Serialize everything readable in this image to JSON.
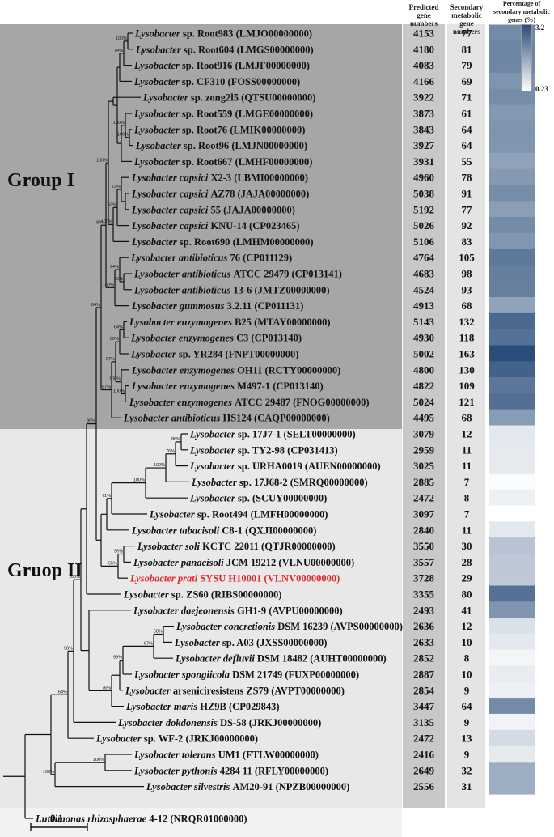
{
  "columns": {
    "predicted": "Predicted gene numbers",
    "secondary": "Secondary metabolic gene numbers",
    "percentage": "Percentage of secondary metabolic genes (%)"
  },
  "legend": {
    "max": "3.2",
    "min": "0.23"
  },
  "groups": {
    "group1": "Group I",
    "group2": "Gruop II"
  },
  "scale": "0.1",
  "colors": {
    "group1_bg": "#a6a6a6",
    "group2_bg": "#e8e8e8",
    "outgroup_bg": "#f2f2f2",
    "highlight": "#e8262c",
    "heat_high": "#2a4d7a",
    "heat_low": "#ffffff"
  },
  "taxa": [
    {
      "genus": "Lysobacter",
      "species": "sp.",
      "italic_species": false,
      "strain": "Root983",
      "acc": "(LMJO00000000)",
      "predicted": "4153",
      "secondary": "77",
      "pct": 1.85
    },
    {
      "genus": "Lysobacter",
      "species": "sp.",
      "italic_species": false,
      "strain": "Root604",
      "acc": "(LMGS00000000)",
      "predicted": "4180",
      "secondary": "81",
      "pct": 1.94
    },
    {
      "genus": "Lysobacter",
      "species": "sp.",
      "italic_species": false,
      "strain": "Root916",
      "acc": "(LMJF00000000)",
      "predicted": "4083",
      "secondary": "79",
      "pct": 1.93
    },
    {
      "genus": "Lysobacter",
      "species": "sp.",
      "italic_species": false,
      "strain": "CF310",
      "acc": "(FOSS00000000)",
      "predicted": "4166",
      "secondary": "69",
      "pct": 1.66
    },
    {
      "genus": "Lysobacter",
      "species": "sp.",
      "italic_species": false,
      "strain": "zong2l5",
      "acc": "(QTSU00000000)",
      "predicted": "3922",
      "secondary": "71",
      "pct": 1.81
    },
    {
      "genus": "Lysobacter",
      "species": "sp.",
      "italic_species": false,
      "strain": "Root559",
      "acc": "(LMGE00000000)",
      "predicted": "3873",
      "secondary": "61",
      "pct": 1.58
    },
    {
      "genus": "Lysobacter",
      "species": "sp.",
      "italic_species": false,
      "strain": "Root76",
      "acc": "(LMIK00000000)",
      "predicted": "3843",
      "secondary": "64",
      "pct": 1.67
    },
    {
      "genus": "Lysobacter",
      "species": "sp.",
      "italic_species": false,
      "strain": "Root96",
      "acc": "(LMJN00000000)",
      "predicted": "3927",
      "secondary": "64",
      "pct": 1.63
    },
    {
      "genus": "Lysobacter",
      "species": "sp.",
      "italic_species": false,
      "strain": "Root667",
      "acc": "(LMHF00000000)",
      "predicted": "3931",
      "secondary": "55",
      "pct": 1.4
    },
    {
      "genus": "Lysobacter",
      "species": "capsici",
      "italic_species": true,
      "strain": "X2-3",
      "acc": "(LBMI00000000)",
      "predicted": "4960",
      "secondary": "78",
      "pct": 1.57
    },
    {
      "genus": "Lysobacter",
      "species": "capsici",
      "italic_species": true,
      "strain": "AZ78",
      "acc": "(JAJA00000000)",
      "predicted": "5038",
      "secondary": "91",
      "pct": 1.81
    },
    {
      "genus": "Lysobacter",
      "species": "capsici",
      "italic_species": true,
      "strain": "55",
      "acc": "(JAJA00000000)",
      "predicted": "5192",
      "secondary": "77",
      "pct": 1.48
    },
    {
      "genus": "Lysobacter",
      "species": "capsici",
      "italic_species": true,
      "strain": "KNU-14",
      "acc": "(CP023465)",
      "predicted": "5026",
      "secondary": "92",
      "pct": 1.83
    },
    {
      "genus": "Lysobacter",
      "species": "sp.",
      "italic_species": false,
      "strain": "Root690",
      "acc": "(LMHM00000000)",
      "predicted": "5106",
      "secondary": "83",
      "pct": 1.63
    },
    {
      "genus": "Lysobacter",
      "species": "antibioticus",
      "italic_species": true,
      "strain": "76",
      "acc": "(CP011129)",
      "predicted": "4764",
      "secondary": "105",
      "pct": 2.2
    },
    {
      "genus": "Lysobacter",
      "species": "antibioticus",
      "italic_species": true,
      "strain": "ATCC 29479",
      "acc": "(CP013141)",
      "predicted": "4683",
      "secondary": "98",
      "pct": 2.09
    },
    {
      "genus": "Lysobacter",
      "species": "antibioticus",
      "italic_species": true,
      "strain": "13-6",
      "acc": "(JMTZ00000000)",
      "predicted": "4524",
      "secondary": "93",
      "pct": 2.06
    },
    {
      "genus": "Lysobacter",
      "species": "gummosus",
      "italic_species": true,
      "strain": "3.2.11",
      "acc": "(CP011131)",
      "predicted": "4913",
      "secondary": "68",
      "pct": 1.38
    },
    {
      "genus": "Lysobacter",
      "species": "enzymogenes",
      "italic_species": true,
      "strain": "B25",
      "acc": "(MTAY00000000)",
      "predicted": "5143",
      "secondary": "132",
      "pct": 2.57
    },
    {
      "genus": "Lysobacter",
      "species": "enzymogenes",
      "italic_species": true,
      "strain": "C3",
      "acc": "(CP013140)",
      "predicted": "4930",
      "secondary": "118",
      "pct": 2.39
    },
    {
      "genus": "Lysobacter",
      "species": "sp.",
      "italic_species": false,
      "strain": "YR284",
      "acc": "(FNPT00000000)",
      "predicted": "5002",
      "secondary": "163",
      "pct": 3.2
    },
    {
      "genus": "Lysobacter",
      "species": "enzymogenes",
      "italic_species": true,
      "strain": "OH11",
      "acc": "(RCTY00000000)",
      "predicted": "4800",
      "secondary": "130",
      "pct": 2.71
    },
    {
      "genus": "Lysobacter",
      "species": "enzymogenes",
      "italic_species": true,
      "strain": "M497-1",
      "acc": "(CP013140)",
      "predicted": "4822",
      "secondary": "109",
      "pct": 2.26
    },
    {
      "genus": "Lysobacter",
      "species": "enzymogenes",
      "italic_species": true,
      "strain": "ATCC 29487",
      "acc": "(FNOG00000000)",
      "predicted": "5024",
      "secondary": "121",
      "pct": 2.41
    },
    {
      "genus": "Lysobacter",
      "species": "antibioticus",
      "italic_species": true,
      "strain": "HS124",
      "acc": "(CAQP00000000)",
      "predicted": "4495",
      "secondary": "68",
      "pct": 1.51
    },
    {
      "genus": "Lysobacter",
      "species": "sp.",
      "italic_species": false,
      "strain": "17J7-1",
      "acc": "(SELT00000000)",
      "predicted": "3079",
      "secondary": "12",
      "pct": 0.39
    },
    {
      "genus": "Lysobacter",
      "species": "sp.",
      "italic_species": false,
      "strain": "TY2-98",
      "acc": "(CP031413)",
      "predicted": "2959",
      "secondary": "11",
      "pct": 0.37
    },
    {
      "genus": "Lysobacter",
      "species": "sp.",
      "italic_species": false,
      "strain": "URHA0019",
      "acc": "(AUEN00000000)",
      "predicted": "3025",
      "secondary": "11",
      "pct": 0.36
    },
    {
      "genus": "Lysobacter",
      "species": "sp.",
      "italic_species": false,
      "strain": "17J68-2",
      "acc": "(SMRQ00000000)",
      "predicted": "2885",
      "secondary": "7",
      "pct": 0.24
    },
    {
      "genus": "Lysobacter",
      "species": "sp.",
      "italic_species": false,
      "strain": "",
      "acc": "(SCUY00000000)",
      "predicted": "2472",
      "secondary": "8",
      "pct": 0.32
    },
    {
      "genus": "Lysobacter",
      "species": "sp.",
      "italic_species": false,
      "strain": "Root494",
      "acc": "(LMFH00000000)",
      "predicted": "3097",
      "secondary": "7",
      "pct": 0.23
    },
    {
      "genus": "Lysobacter",
      "species": "tabacisoli",
      "italic_species": true,
      "strain": "C8-1",
      "acc": "(QXJI00000000)",
      "predicted": "2840",
      "secondary": "11",
      "pct": 0.39
    },
    {
      "genus": "Lysobacter",
      "species": "soli",
      "italic_species": true,
      "strain": "KCTC 22011",
      "acc": "(QTJR00000000)",
      "predicted": "3550",
      "secondary": "30",
      "pct": 0.85
    },
    {
      "genus": "Lysobacter",
      "species": "panacisoli",
      "italic_species": true,
      "strain": "JCM 19212",
      "acc": "(VLNU00000000)",
      "predicted": "3557",
      "secondary": "28",
      "pct": 0.79
    },
    {
      "genus": "Lysobacter",
      "species": "prati",
      "italic_species": true,
      "strain": "SYSU H10001",
      "acc": "(VLNV00000000)",
      "predicted": "3728",
      "secondary": "29",
      "pct": 0.78,
      "highlight": true
    },
    {
      "genus": "Lysobacter",
      "species": "sp.",
      "italic_species": false,
      "strain": "ZS60",
      "acc": "(RIBS00000000)",
      "predicted": "3355",
      "secondary": "80",
      "pct": 2.38
    },
    {
      "genus": "Lysobacter",
      "species": "daejeonensis",
      "italic_species": true,
      "strain": "GH1-9",
      "acc": "(AVPU00000000)",
      "predicted": "2493",
      "secondary": "41",
      "pct": 1.64
    },
    {
      "genus": "Lysobacter",
      "species": "concretionis",
      "italic_species": true,
      "strain": "DSM 16239",
      "acc": "(AVPS00000000)",
      "predicted": "2636",
      "secondary": "12",
      "pct": 0.46
    },
    {
      "genus": "Lysobacter",
      "species": "sp.",
      "italic_species": false,
      "strain": "A03",
      "acc": "(JXSS00000000)",
      "predicted": "2633",
      "secondary": "10",
      "pct": 0.38
    },
    {
      "genus": "Lysobacter",
      "species": "defluvii",
      "italic_species": true,
      "strain": "DSM 18482",
      "acc": "(AUHT00000000)",
      "predicted": "2852",
      "secondary": "8",
      "pct": 0.28
    },
    {
      "genus": "Lysobacter",
      "species": "spongiicola",
      "italic_species": true,
      "strain": "DSM 21749",
      "acc": "(FUXP00000000)",
      "predicted": "2887",
      "secondary": "10",
      "pct": 0.35
    },
    {
      "genus": "Lysobacter",
      "species": "arseniciresistens",
      "italic_species": false,
      "strain": "ZS79",
      "acc": "(AVPT00000000)",
      "predicted": "2854",
      "secondary": "9",
      "pct": 0.32
    },
    {
      "genus": "Lysobacter",
      "species": "maris",
      "italic_species": true,
      "strain": "HZ9B",
      "acc": "(CP029843)",
      "predicted": "3447",
      "secondary": "64",
      "pct": 1.86
    },
    {
      "genus": "Lysobacter",
      "species": "dokdonensis",
      "italic_species": true,
      "strain": "DS-58",
      "acc": "(JRKJ00000000)",
      "predicted": "3135",
      "secondary": "9",
      "pct": 0.29
    },
    {
      "genus": "Lysobacter",
      "species": "sp.",
      "italic_species": false,
      "strain": "WF-2",
      "acc": "(JRKJ00000000)",
      "predicted": "2472",
      "secondary": "13",
      "pct": 0.53
    },
    {
      "genus": "Lysobacter",
      "species": "tolerans",
      "italic_species": true,
      "strain": "UM1",
      "acc": "(FTLW00000000)",
      "predicted": "2416",
      "secondary": "9",
      "pct": 0.37
    },
    {
      "genus": "Lysobacter",
      "species": "pythonis",
      "italic_species": true,
      "strain": "4284 11",
      "acc": "(RFLY00000000)",
      "predicted": "2649",
      "secondary": "32",
      "pct": 1.21
    },
    {
      "genus": "Lysobacter",
      "species": "silvestris",
      "italic_species": true,
      "strain": "AM20-91",
      "acc": "(NPZB00000000)",
      "predicted": "2556",
      "secondary": "31",
      "pct": 1.21
    },
    {
      "genus": "Luteimonas",
      "species": "rhizosphaerae",
      "italic_species": true,
      "strain": "4-12",
      "acc": "(NRQR01000000)",
      "predicted": "",
      "secondary": "",
      "pct": null
    }
  ],
  "tips": [
    164,
    165,
    163,
    163,
    174,
    163,
    163,
    165,
    163,
    160,
    160,
    160,
    160,
    160,
    159,
    163,
    163,
    160,
    157,
    159,
    159,
    160,
    160,
    157,
    150,
    232,
    232,
    232,
    234,
    232,
    182,
    160,
    167,
    162,
    158,
    150,
    162,
    215,
    213,
    214,
    163,
    152,
    153,
    143,
    116,
    163,
    163,
    178,
    41
  ],
  "nodes": [
    {
      "x": 158,
      "c": [
        0,
        1
      ],
      "b": "100%"
    },
    {
      "x": 153,
      "c": [
        "n0",
        2
      ],
      "b": "74%"
    },
    {
      "x": 148,
      "c": [
        "n1",
        3
      ]
    },
    {
      "x": 160,
      "c": [
        6,
        7
      ],
      "b": "100%"
    },
    {
      "x": 155,
      "c": [
        "n3",
        5
      ],
      "b": "100%"
    },
    {
      "x": 150,
      "c": [
        "n4",
        8
      ]
    },
    {
      "x": 145,
      "c": [
        "n2",
        "n5"
      ]
    },
    {
      "x": 140,
      "c": [
        "n6",
        4
      ]
    },
    {
      "x": 155,
      "c": [
        10,
        11
      ]
    },
    {
      "x": 150,
      "c": [
        "n8",
        9
      ],
      "b": "72%"
    },
    {
      "x": 145,
      "c": [
        "n9",
        12
      ],
      "b": "63%"
    },
    {
      "x": 140,
      "c": [
        "n10",
        13
      ],
      "b": "100%"
    },
    {
      "x": 134,
      "c": [
        "n7",
        "n11"
      ],
      "b": "100%"
    },
    {
      "x": 153,
      "c": [
        15,
        16
      ],
      "b": "55%"
    },
    {
      "x": 148,
      "c": [
        14,
        "n13"
      ],
      "b": "94%"
    },
    {
      "x": 142,
      "c": [
        "n14",
        17
      ],
      "b": "100%"
    },
    {
      "x": 131,
      "c": [
        "n12",
        "n15"
      ],
      "b": "94%"
    },
    {
      "x": 153,
      "c": [
        18,
        19
      ],
      "b": "64%"
    },
    {
      "x": 148,
      "c": [
        "n17",
        20
      ],
      "b": "86%"
    },
    {
      "x": 155,
      "c": [
        22,
        23
      ],
      "b": "100%"
    },
    {
      "x": 150,
      "c": [
        21,
        "n19"
      ],
      "b": "100%"
    },
    {
      "x": 143,
      "c": [
        "n18",
        "n20"
      ],
      "b": "97%"
    },
    {
      "x": 138,
      "c": [
        "n21",
        24
      ],
      "b": "87%"
    },
    {
      "x": 125,
      "c": [
        "n16",
        "n22"
      ],
      "b": "84%"
    },
    {
      "x": 224,
      "c": [
        25,
        26
      ],
      "b": "86%"
    },
    {
      "x": 217,
      "c": [
        "n24",
        27
      ],
      "b": "76%"
    },
    {
      "x": 205,
      "c": [
        "n25",
        28
      ],
      "b": "100%"
    },
    {
      "x": 180,
      "c": [
        "n26",
        29
      ],
      "b": "100%"
    },
    {
      "x": 153,
      "c": [
        32,
        33
      ],
      "b": "96%"
    },
    {
      "x": 146,
      "c": [
        "n28",
        34
      ],
      "b": "55%"
    },
    {
      "x": 138,
      "c": [
        "n27",
        30
      ],
      "b": "71%"
    },
    {
      "x": 132,
      "c": [
        "n30",
        31
      ]
    },
    {
      "x": 125,
      "c": [
        "n31",
        "n29"
      ]
    },
    {
      "x": 119,
      "c": [
        "n23",
        "n32"
      ],
      "b": "99%"
    },
    {
      "x": 202,
      "c": [
        37,
        38
      ],
      "b": "58%"
    },
    {
      "x": 190,
      "c": [
        "n34",
        39
      ],
      "b": "67%"
    },
    {
      "x": 152,
      "c": [
        "n35",
        40
      ],
      "b": "99%"
    },
    {
      "x": 148,
      "c": [
        "n36",
        41
      ]
    },
    {
      "x": 138,
      "c": [
        "n37",
        42
      ],
      "b": "76%"
    },
    {
      "x": 110,
      "c": [
        "n38",
        36
      ]
    },
    {
      "x": 107,
      "c": [
        "n33",
        35
      ]
    },
    {
      "x": 100,
      "c": [
        "n40",
        "n39"
      ],
      "b": "100%"
    },
    {
      "x": 91,
      "c": [
        "n41",
        43
      ],
      "b": "98%"
    },
    {
      "x": 84,
      "c": [
        "n42",
        44
      ],
      "b": "64%"
    },
    {
      "x": 130,
      "c": [
        45,
        46
      ],
      "b": "100%"
    },
    {
      "x": 68,
      "c": [
        "n44",
        47
      ],
      "b": "100%"
    },
    {
      "x": 63,
      "c": [
        "n43",
        "n45"
      ]
    },
    {
      "x": 31,
      "c": [
        "n46",
        48
      ]
    },
    {
      "x": 4,
      "c": [
        "n47"
      ]
    }
  ]
}
